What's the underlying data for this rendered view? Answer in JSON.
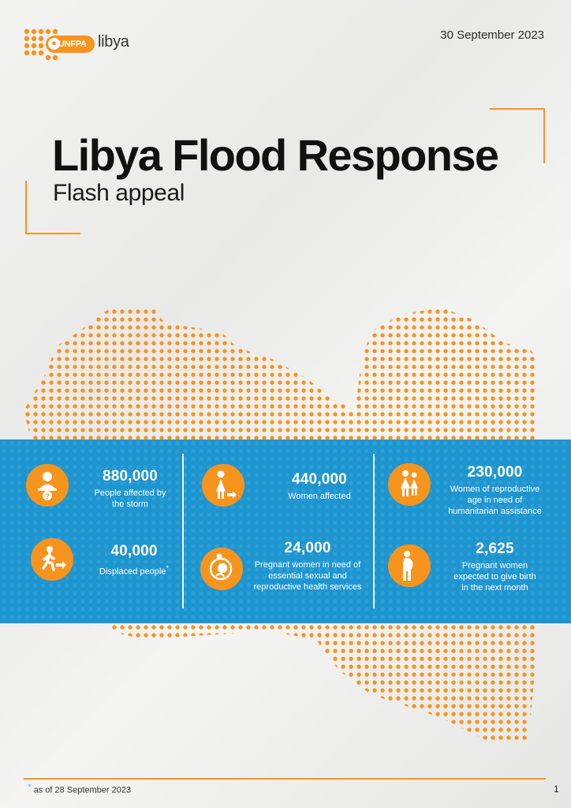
{
  "header": {
    "logo_org": "UNFPA",
    "logo_country": "libya",
    "date": "30 September 2023"
  },
  "title": "Libya Flood Response",
  "subtitle": "Flash appeal",
  "stats": [
    {
      "value": "880,000",
      "label": "People affected by the storm",
      "icon": "people-affected-icon"
    },
    {
      "value": "40,000",
      "label": "Displaced people",
      "icon": "displaced-person-icon"
    },
    {
      "value": "440,000",
      "label": "Women affected",
      "icon": "woman-affected-icon"
    },
    {
      "value": "24,000",
      "label": "Pregnant women in need of essential sexual and reproductive health services",
      "icon": "pregnant-woman-icon"
    },
    {
      "value": "230,000",
      "label": "Women of reproductive age in need of humanitarian assistance",
      "icon": "women-group-icon"
    },
    {
      "value": "2,625",
      "label": "Pregnant women expected to give birth in the next month",
      "icon": "pregnant-birth-icon"
    }
  ],
  "colors": {
    "accent_orange": "#f7941d",
    "band_blue": "#1f95cf"
  },
  "footer": {
    "footnote_marker": "*",
    "footnote": "as of 28 September 2023",
    "page_number": "1"
  }
}
